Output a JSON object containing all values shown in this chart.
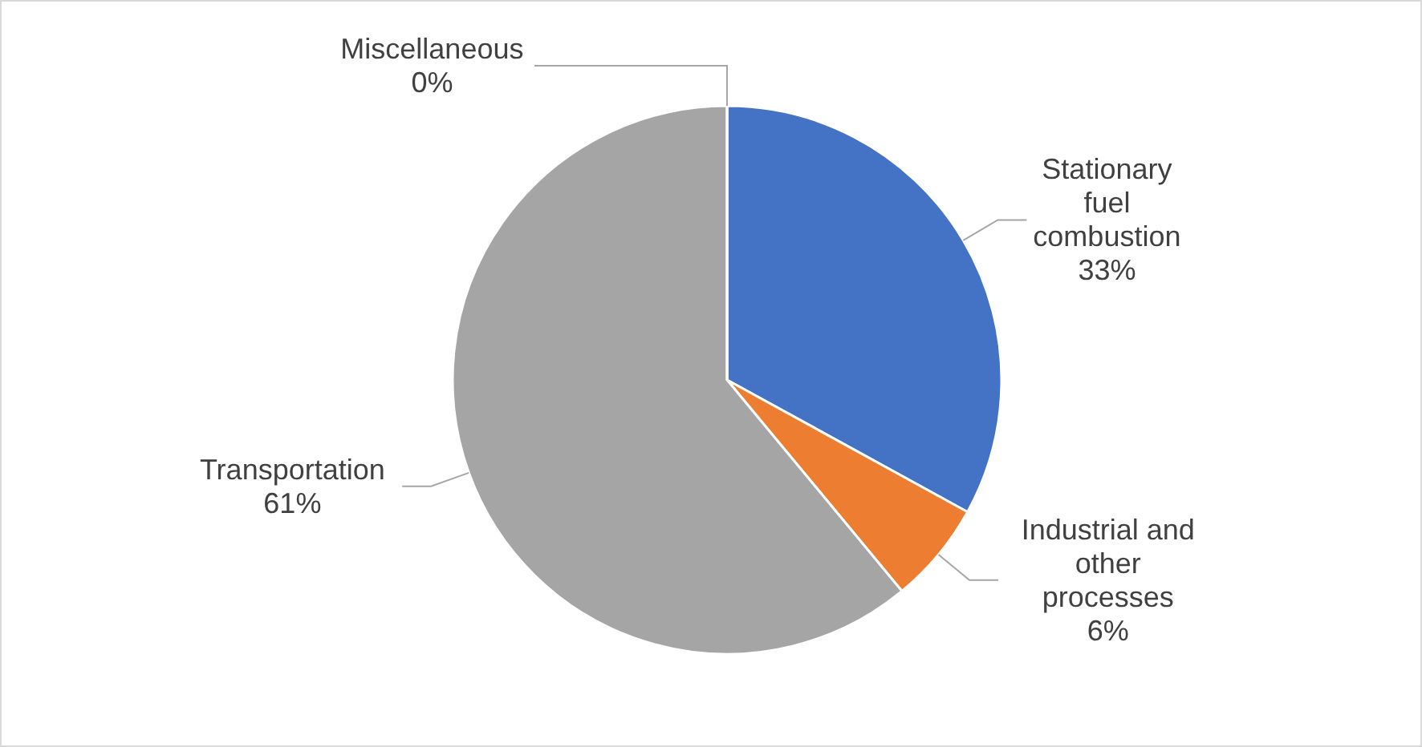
{
  "chart_data": {
    "type": "pie",
    "categories": [
      "Stationary fuel combustion",
      "Industrial and other processes",
      "Transportation",
      "Miscellaneous"
    ],
    "values": [
      33,
      6,
      61,
      0
    ],
    "value_labels": [
      "33%",
      "6%",
      "61%",
      "0%"
    ],
    "colors": [
      "#4472c4",
      "#ed7d31",
      "#a5a5a5",
      "#ffc000"
    ]
  }
}
